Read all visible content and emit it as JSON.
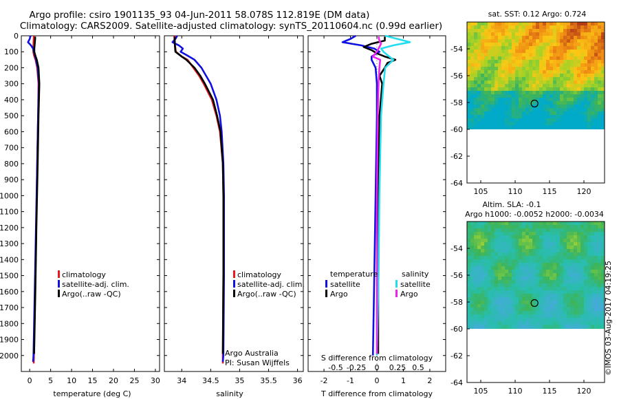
{
  "figure": {
    "title_line1": "Argo profile: csiro 1901135_93 04-Jun-2011 58.078S 112.819E (DM data)",
    "title_line2": "Climatology: CARS2009. Satellite-adjusted climatology: synTS_20110604.nc (0.99d earlier)",
    "credit": "©IMOS 03-Aug-2017 04:19:25"
  },
  "colors": {
    "climatology": "#e41a1c",
    "satellite": "#1010e0",
    "argo": "#000000",
    "satellite_salinity": "#22ddee",
    "argo_salinity": "#ee22ee"
  },
  "depth_ticks": [
    "0",
    "100",
    "200",
    "300",
    "400",
    "500",
    "600",
    "700",
    "800",
    "900",
    "1000",
    "1100",
    "1200",
    "1300",
    "1400",
    "1500",
    "1600",
    "1700",
    "1800",
    "1900",
    "2000"
  ],
  "chart_data": [
    {
      "type": "line",
      "id": "temperature",
      "xlabel": "temperature (deg C)",
      "ylabel": "",
      "xlim": [
        -2,
        31
      ],
      "ylim": [
        2100,
        0
      ],
      "xticks": [
        "0",
        "5",
        "10",
        "15",
        "20",
        "25",
        "30"
      ],
      "legend": [
        "climatology",
        "satellite-adj. clim.",
        "Argo(..raw -QC)"
      ],
      "series": [
        {
          "name": "climatology",
          "depth": [
            0,
            20,
            50,
            80,
            100,
            120,
            150,
            200,
            300,
            500,
            800,
            1200,
            1600,
            2000,
            2050
          ],
          "values": [
            1.0,
            0.95,
            0.9,
            0.85,
            0.85,
            1.0,
            1.4,
            1.8,
            2.1,
            2.0,
            1.8,
            1.55,
            1.3,
            1.0,
            0.95
          ]
        },
        {
          "name": "satellite-adj. clim.",
          "depth": [
            0,
            20,
            40,
            60,
            80,
            100,
            120,
            150,
            200,
            300,
            500,
            800,
            1200,
            1600,
            2000,
            2040
          ],
          "values": [
            0.2,
            0.0,
            -0.4,
            0.3,
            0.8,
            1.0,
            1.2,
            1.5,
            1.9,
            2.2,
            2.0,
            1.8,
            1.5,
            1.2,
            0.9,
            0.8
          ]
        },
        {
          "name": "Argo(..raw -QC)",
          "depth": [
            5,
            20,
            50,
            80,
            100,
            120,
            150,
            200,
            300,
            500,
            800,
            1200,
            1600,
            1990
          ],
          "values": [
            1.3,
            1.3,
            1.2,
            1.1,
            1.1,
            1.3,
            1.7,
            2.1,
            2.3,
            2.1,
            1.9,
            1.6,
            1.35,
            1.05
          ]
        }
      ]
    },
    {
      "type": "line",
      "id": "salinity",
      "xlabel": "salinity",
      "ylabel": "",
      "xlim": [
        33.7,
        36.1
      ],
      "ylim": [
        2100,
        0
      ],
      "xticks": [
        "34",
        "34.5",
        "35",
        "35.5",
        "36"
      ],
      "legend": [
        "climatology",
        "satellite-adj. clim.",
        "Argo(..raw -QC)"
      ],
      "annotation": [
        "Argo Australia",
        "PI: Susan Wijffels"
      ],
      "series": [
        {
          "name": "climatology",
          "depth": [
            0,
            50,
            100,
            130,
            150,
            200,
            250,
            300,
            400,
            500,
            600,
            800,
            1000,
            1500,
            2000,
            2050
          ],
          "values": [
            33.87,
            33.88,
            33.9,
            34.0,
            34.1,
            34.2,
            34.3,
            34.38,
            34.52,
            34.6,
            34.66,
            34.71,
            34.72,
            34.72,
            34.71,
            34.71
          ]
        },
        {
          "name": "satellite-adj. clim.",
          "depth": [
            0,
            15,
            40,
            60,
            80,
            100,
            120,
            150,
            200,
            250,
            300,
            400,
            500,
            600,
            800,
            1000,
            1500,
            2000,
            2040
          ],
          "values": [
            33.92,
            33.9,
            33.84,
            33.95,
            34.02,
            33.98,
            34.08,
            34.22,
            34.34,
            34.42,
            34.5,
            34.6,
            34.66,
            34.69,
            34.72,
            34.73,
            34.73,
            34.72,
            34.71
          ]
        },
        {
          "name": "Argo(..raw -QC)",
          "depth": [
            5,
            50,
            100,
            130,
            150,
            200,
            250,
            300,
            400,
            500,
            600,
            800,
            1000,
            1500,
            1990
          ],
          "values": [
            33.88,
            33.88,
            33.89,
            34.0,
            34.08,
            34.22,
            34.32,
            34.4,
            34.54,
            34.61,
            34.67,
            34.71,
            34.72,
            34.72,
            34.71
          ]
        }
      ]
    },
    {
      "type": "line",
      "id": "difference",
      "xlabel": "T difference from climatology",
      "xlabel2": "S difference from climatology",
      "xlim": [
        -2.6,
        2.6
      ],
      "ylim": [
        2100,
        0
      ],
      "xticks": [
        "-2",
        "-1",
        "0",
        "1",
        "2"
      ],
      "xticks2": [
        "-0.5",
        "-0.25",
        "0",
        "0.25",
        "0.5"
      ],
      "legend_headers": [
        "temperature",
        "salinity"
      ],
      "legend": [
        "satellite",
        "Argo",
        "satellite",
        "Argo"
      ],
      "series": [
        {
          "name": "temperature satellite",
          "depth": [
            0,
            20,
            40,
            60,
            80,
            100,
            130,
            150,
            200,
            300,
            500,
            1000,
            1500,
            2000
          ],
          "values": [
            -0.8,
            -1.0,
            -1.3,
            -0.6,
            -0.1,
            0.1,
            -0.2,
            -0.2,
            -0.05,
            0.0,
            0.0,
            -0.05,
            -0.1,
            -0.15
          ]
        },
        {
          "name": "temperature Argo",
          "depth": [
            5,
            30,
            50,
            70,
            90,
            110,
            130,
            150,
            170,
            200,
            250,
            300,
            500,
            1000,
            1500,
            1990
          ],
          "values": [
            0.3,
            0.3,
            -0.2,
            -0.5,
            -0.2,
            0.0,
            0.3,
            0.7,
            0.4,
            0.3,
            0.1,
            0.2,
            0.1,
            0.05,
            0.05,
            0.05
          ]
        },
        {
          "name": "salinity satellite",
          "depth": [
            0,
            20,
            40,
            60,
            80,
            100,
            130,
            150,
            200,
            300,
            500,
            1000,
            1500,
            2000
          ],
          "values": [
            0.1,
            0.25,
            0.4,
            0.2,
            0.05,
            0.08,
            0.15,
            0.2,
            0.1,
            0.08,
            0.05,
            0.03,
            0.02,
            0.0
          ]
        },
        {
          "name": "salinity Argo",
          "depth": [
            5,
            30,
            50,
            80,
            100,
            130,
            150,
            200,
            300,
            500,
            1000,
            1500,
            1990
          ],
          "values": [
            0.02,
            0.03,
            0.05,
            0.02,
            0.0,
            -0.05,
            0.04,
            0.03,
            0.02,
            0.01,
            0.0,
            0.0,
            0.0
          ]
        }
      ]
    },
    {
      "type": "heatmap",
      "id": "sst_map",
      "title": "sat. SST: 0.12 Argo: 0.724",
      "xticks": [
        "105",
        "110",
        "115",
        "120"
      ],
      "yticks": [
        "-54",
        "-56",
        "-58",
        "-60",
        "-62",
        "-64"
      ],
      "xlim": [
        103,
        123
      ],
      "ylim": [
        -64,
        -52
      ],
      "marker": {
        "lon": 112.819,
        "lat": -58.078
      }
    },
    {
      "type": "heatmap",
      "id": "sla_map",
      "title_line1": "Altim. SLA: -0.1",
      "title_line2": "Argo h1000: -0.0052 h2000: -0.0034",
      "xticks": [
        "105",
        "110",
        "115",
        "120"
      ],
      "yticks": [
        "-54",
        "-56",
        "-58",
        "-60",
        "-62",
        "-64"
      ],
      "xlim": [
        103,
        123
      ],
      "ylim": [
        -64,
        -52
      ],
      "marker": {
        "lon": 112.819,
        "lat": -58.078
      }
    }
  ]
}
